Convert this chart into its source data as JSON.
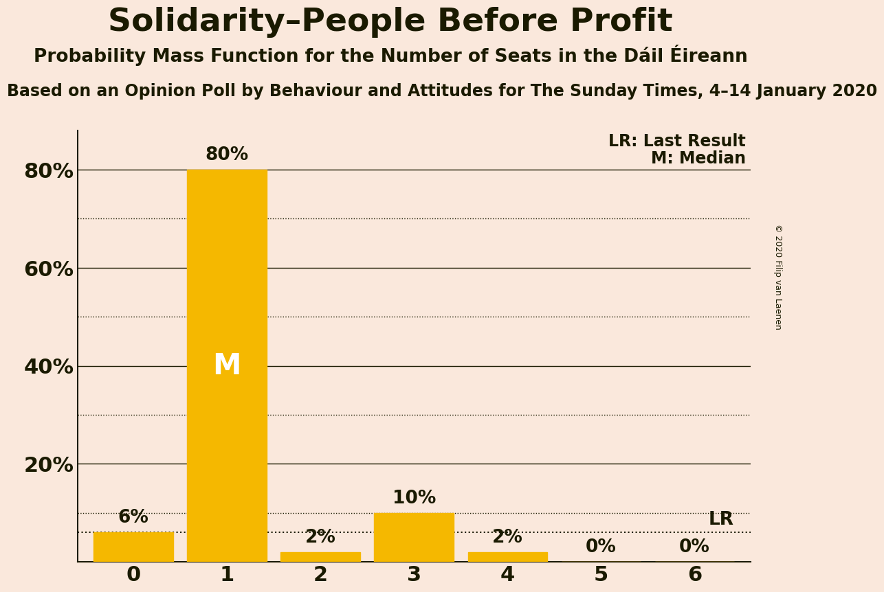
{
  "title": "Solidarity–People Before Profit",
  "subtitle": "Probability Mass Function for the Number of Seats in the Dáil Éireann",
  "subsubtitle": "Based on an Opinion Poll by Behaviour and Attitudes for The Sunday Times, 4–14 January 2020",
  "copyright": "© 2020 Filip van Laenen",
  "categories": [
    0,
    1,
    2,
    3,
    4,
    5,
    6
  ],
  "values": [
    0.06,
    0.8,
    0.02,
    0.1,
    0.02,
    0.0,
    0.0
  ],
  "bar_color": "#F5B800",
  "background_color": "#FAE8DC",
  "text_color": "#1a1a00",
  "median_index": 1,
  "lr_level": 0.06,
  "ylim": [
    0,
    0.88
  ],
  "yticks": [
    0.2,
    0.4,
    0.6,
    0.8
  ],
  "ytick_labels": [
    "20%",
    "40%",
    "60%",
    "80%"
  ],
  "solid_grid": [
    0.2,
    0.4,
    0.6,
    0.8
  ],
  "dotted_grid": [
    0.1,
    0.3,
    0.5,
    0.7
  ],
  "legend_lr": "LR: Last Result",
  "legend_m": "M: Median",
  "title_fontsize": 34,
  "subtitle_fontsize": 19,
  "subsubtitle_fontsize": 17,
  "tick_fontsize": 22,
  "bar_label_fontsize": 19,
  "legend_fontsize": 17,
  "m_fontsize": 30
}
